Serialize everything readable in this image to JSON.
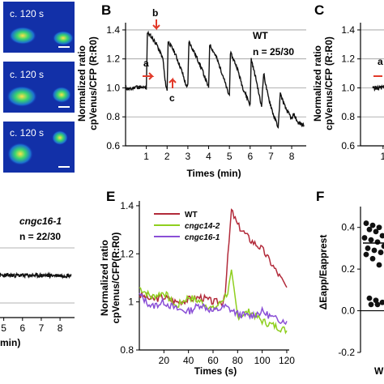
{
  "colors": {
    "wt": "#b22a3a",
    "cngc14_2": "#8fcf1f",
    "cngc16_1": "#8a4fd6",
    "black": "#111111",
    "arrow": "#e23a2a",
    "image_bg": "#1230a8"
  },
  "panel_letters": {
    "B": "B",
    "C": "C",
    "E": "E",
    "F": "F"
  },
  "images": [
    {
      "label": "c. 120 s"
    },
    {
      "label": "c. 120 s"
    },
    {
      "label": "c. 120 s"
    }
  ],
  "panel_b": {
    "geno": "WT",
    "n": "n = 25/30",
    "markers": {
      "a": "a",
      "b": "b",
      "c": "c"
    },
    "xlabel": "Times (min)",
    "ylabel_line1": "Normalized ratio",
    "ylabel_line2": "cpVenus/CFP (R:R0)"
  },
  "panel_c": {
    "marker": "a",
    "ylabel_line1": "Normalized ratio",
    "ylabel_line2": "cpVenus/CFP (R:R0)"
  },
  "panel_d": {
    "geno": "cngc16-1",
    "n": "n = 22/30",
    "xlabel_fragment": "min)"
  },
  "panel_e": {
    "xlabel": "Times (s)",
    "ylabel_line1": "Normalized ratio",
    "ylabel_line2": "cpVenus/CFP(R:R0)"
  },
  "panel_f": {
    "ylabel": "ΔEapp/Eapprest",
    "xtick_fragment": "W"
  },
  "chart_data": [
    {
      "panel": "B",
      "type": "line",
      "x_axis": "Times (min)",
      "y_axis": "Normalized ratio cpVenus/CFP (R:R0)",
      "xlim": [
        0,
        8.7
      ],
      "ylim": [
        0.6,
        1.45
      ],
      "xticks": [
        "1",
        "2",
        "3",
        "4",
        "5",
        "6",
        "7",
        "8"
      ],
      "yticks": [
        "0.6",
        "0.8",
        "1.0",
        "1.2",
        "1.4"
      ],
      "grid_y": [
        0.8,
        1.0,
        1.2,
        1.4
      ],
      "series": [
        {
          "x": [
            0,
            0.25,
            0.5,
            0.75,
            1.0,
            1.05,
            1.2,
            1.5,
            1.8,
            1.9,
            2.0,
            2.05,
            2.35,
            2.7,
            2.95,
            3.0,
            3.05,
            3.3,
            3.7,
            4.0,
            4.05,
            4.35,
            4.7,
            4.95,
            5.0,
            5.05,
            5.35,
            5.65,
            5.95,
            6.0,
            6.05,
            6.3,
            6.5,
            6.55,
            6.65,
            6.85,
            7.15,
            7.3,
            7.35,
            7.45,
            7.7,
            7.95,
            8.0,
            8.1,
            8.3,
            8.6
          ],
          "y": [
            1.0,
            0.99,
            1.01,
            1.0,
            1.0,
            1.38,
            1.36,
            1.3,
            1.2,
            1.05,
            0.98,
            1.32,
            1.25,
            1.12,
            1.0,
            1.02,
            1.32,
            1.25,
            1.12,
            1.0,
            1.3,
            1.22,
            1.08,
            0.96,
            0.95,
            1.24,
            1.15,
            1.0,
            0.9,
            0.88,
            1.2,
            1.05,
            0.9,
            0.88,
            1.1,
            0.95,
            0.8,
            0.75,
            0.72,
            0.96,
            0.86,
            0.8,
            0.78,
            0.82,
            0.76,
            0.74
          ]
        }
      ]
    },
    {
      "panel": "C",
      "type": "line",
      "ylim": [
        0.6,
        1.45
      ],
      "xticks": [
        "1"
      ],
      "yticks": [
        "0.6",
        "0.8",
        "1.0",
        "1.2",
        "1.4"
      ],
      "grid_y": [
        0.8,
        1.0,
        1.2,
        1.4
      ],
      "series": [
        {
          "x": [
            0.65,
            1.05
          ],
          "y": [
            1.0,
            1.0
          ]
        }
      ]
    },
    {
      "panel": "D",
      "type": "line",
      "xticks": [
        "5",
        "6",
        "7",
        "8"
      ],
      "series": [
        {
          "name": "cngc16-1",
          "x": [
            4.8,
            8.6
          ],
          "y": [
            1.0,
            1.0
          ]
        }
      ]
    },
    {
      "panel": "E",
      "type": "line",
      "x_axis": "Times (s)",
      "y_axis": "Normalized ratio cpVenus/CFP(R:R0)",
      "xlim": [
        0,
        122
      ],
      "ylim": [
        0.8,
        1.42
      ],
      "xticks": [
        "20",
        "40",
        "60",
        "80",
        "100",
        "120"
      ],
      "yticks": [
        "0.8",
        "1",
        "1.2",
        "1.4"
      ],
      "legend_position": "top-left",
      "series": [
        {
          "name": "WT",
          "x": [
            0,
            10,
            20,
            30,
            40,
            50,
            60,
            68,
            70,
            75,
            80,
            90,
            100,
            110,
            120
          ],
          "y": [
            1.03,
            1.01,
            1.02,
            1.0,
            1.01,
            1.02,
            1.0,
            1.0,
            1.05,
            1.38,
            1.32,
            1.26,
            1.22,
            1.14,
            1.06
          ]
        },
        {
          "name": "cngc14-2",
          "x": [
            0,
            10,
            20,
            30,
            40,
            50,
            60,
            65,
            72,
            75,
            80,
            90,
            100,
            110,
            120
          ],
          "y": [
            1.06,
            1.02,
            1.04,
            0.98,
            1.02,
            1.0,
            0.97,
            0.99,
            1.04,
            1.12,
            0.94,
            0.96,
            0.92,
            0.9,
            0.88
          ]
        },
        {
          "name": "cngc16-1",
          "x": [
            0,
            10,
            20,
            30,
            40,
            50,
            60,
            70,
            80,
            90,
            100,
            110,
            120
          ],
          "y": [
            1.03,
            0.98,
            1.0,
            0.97,
            0.96,
            0.99,
            0.96,
            0.98,
            0.95,
            0.94,
            0.96,
            0.93,
            0.92
          ]
        }
      ]
    },
    {
      "panel": "F",
      "type": "scatter",
      "y_axis": "ΔEapp/Eapprest",
      "ylim": [
        -0.2,
        0.5
      ],
      "yticks": [
        "-0.2",
        "0.0",
        "0.2",
        "0.4"
      ],
      "mean_line": 0.325,
      "series": [
        {
          "values": [
            0.42,
            0.41,
            0.4,
            0.39,
            0.38,
            0.36,
            0.35,
            0.34,
            0.33,
            0.31,
            0.3,
            0.29,
            0.28,
            0.27,
            0.25,
            0.22,
            0.06,
            0.05,
            0.04,
            0.03,
            0.03
          ]
        }
      ]
    }
  ]
}
